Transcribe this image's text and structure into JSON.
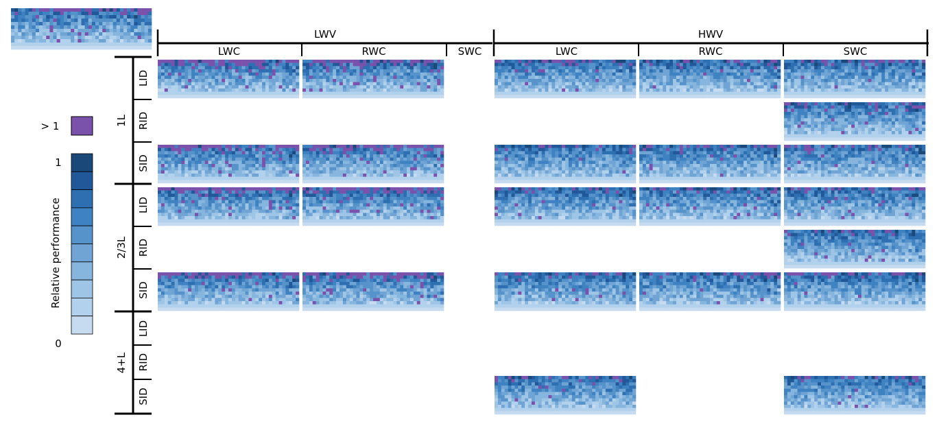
{
  "chart_data": {
    "type": "heatmap",
    "title": "",
    "colorbar": {
      "label": "Relative performance",
      "over_label": "> 1",
      "tick_labels": [
        "1",
        "0"
      ],
      "levels": 10,
      "over_color": "#7b52ab",
      "colors": [
        "#c6dbef",
        "#b2d1ec",
        "#9ec5e6",
        "#86b5dd",
        "#6fa4d4",
        "#5693cb",
        "#3f82c1",
        "#2d6fb0",
        "#20589a",
        "#1a4878"
      ]
    },
    "column_groups": [
      {
        "label": "LWV",
        "columns": [
          "LWC",
          "RWC",
          "SWC"
        ]
      },
      {
        "label": "HWV",
        "columns": [
          "LWC",
          "RWC",
          "SWC"
        ]
      }
    ],
    "row_groups": [
      {
        "label": "1L",
        "rows": [
          "LID",
          "RID",
          "SID"
        ]
      },
      {
        "label": "2/3L",
        "rows": [
          "LID",
          "RID",
          "SID"
        ]
      },
      {
        "label": "4+L",
        "rows": [
          "LID",
          "RID",
          "SID"
        ]
      }
    ],
    "panels_present": [
      {
        "row_group": "1L",
        "row": "LID",
        "columns": [
          "LWV-LWC",
          "LWV-RWC",
          "HWV-LWC",
          "HWV-RWC",
          "HWV-SWC"
        ]
      },
      {
        "row_group": "1L",
        "row": "RID",
        "columns": [
          "HWV-SWC"
        ]
      },
      {
        "row_group": "1L",
        "row": "SID",
        "columns": [
          "LWV-LWC",
          "LWV-RWC",
          "HWV-LWC",
          "HWV-RWC",
          "HWV-SWC"
        ]
      },
      {
        "row_group": "2/3L",
        "row": "LID",
        "columns": [
          "LWV-LWC",
          "LWV-RWC",
          "HWV-LWC",
          "HWV-RWC",
          "HWV-SWC"
        ]
      },
      {
        "row_group": "2/3L",
        "row": "RID",
        "columns": [
          "HWV-SWC"
        ]
      },
      {
        "row_group": "2/3L",
        "row": "SID",
        "columns": [
          "LWV-LWC",
          "LWV-RWC",
          "HWV-LWC",
          "HWV-RWC",
          "HWV-SWC"
        ]
      },
      {
        "row_group": "4+L",
        "row": "SID",
        "columns": [
          "HWV-LWC",
          "HWV-SWC"
        ]
      }
    ],
    "grid": false,
    "legend": "left"
  }
}
